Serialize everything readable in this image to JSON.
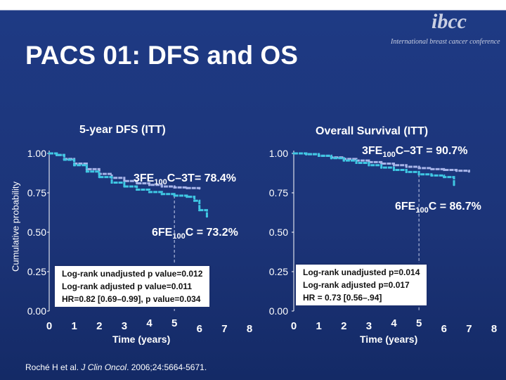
{
  "title": "PACS 01: DFS and OS",
  "logo": {
    "mark": "ibcc",
    "tagline": "International breast cancer conference"
  },
  "ylabel": "Cumulative probability",
  "reference": {
    "prefix": "Roché H et al. ",
    "journal": "J Clin Oncol",
    "suffix": ". 2006;24:5664-5671."
  },
  "colors": {
    "background": "#1c3478",
    "series_fec_t": "#a7b4e8",
    "series_fec": "#3fc7e3",
    "box_bg": "#ffffff"
  },
  "chart_data": [
    {
      "type": "line",
      "title": "5-year DFS (ITT)",
      "xlabel": "Time (years)",
      "xlim": [
        0,
        8
      ],
      "ylim": [
        0,
        1
      ],
      "x_ticks": [
        "0",
        "1",
        "2",
        "3",
        "4",
        "5",
        "6",
        "7",
        "8"
      ],
      "y_ticks": [
        "0.00",
        "0.25",
        "0.50",
        "0.75",
        "1.00"
      ],
      "annotations": {
        "fec_t": {
          "base": "3FE",
          "sub": "100",
          "rest": "C–3T= 78.4%"
        },
        "fec": {
          "base": "6FE",
          "sub": "100",
          "rest": "C = 73.2%"
        }
      },
      "stats_box": [
        "Log-rank unadjusted p value=0.012",
        "Log-rank adjusted p value=0.011",
        "HR=0.82 [0.69–0.99], p value=0.034"
      ],
      "series": [
        {
          "key": "fec_t",
          "x": [
            0,
            0.3,
            0.6,
            1,
            1.5,
            2,
            2.5,
            3,
            3.5,
            4,
            4.5,
            5,
            5.5,
            6
          ],
          "y": [
            1,
            0.99,
            0.965,
            0.935,
            0.9,
            0.87,
            0.845,
            0.825,
            0.81,
            0.8,
            0.79,
            0.784,
            0.78,
            0.778
          ]
        },
        {
          "key": "fec",
          "x": [
            0,
            0.3,
            0.6,
            1,
            1.5,
            2,
            2.5,
            3,
            3.5,
            4,
            4.5,
            5,
            5.5,
            5.8,
            6,
            6.3
          ],
          "y": [
            1,
            0.99,
            0.96,
            0.925,
            0.885,
            0.85,
            0.815,
            0.79,
            0.77,
            0.755,
            0.742,
            0.732,
            0.725,
            0.7,
            0.64,
            0.6
          ]
        }
      ],
      "dashed_marker": {
        "x": 5,
        "y": 0.732
      }
    },
    {
      "type": "line",
      "title": "Overall Survival (ITT)",
      "xlabel": "Time (years)",
      "xlim": [
        0,
        8
      ],
      "ylim": [
        0,
        1
      ],
      "x_ticks": [
        "0",
        "1",
        "2",
        "3",
        "4",
        "5",
        "6",
        "7",
        "8"
      ],
      "y_ticks": [
        "0.00",
        "0.25",
        "0.50",
        "0.75",
        "1.00"
      ],
      "annotations": {
        "fec_t": {
          "base": "3FE",
          "sub": "100",
          "rest": "C–3T  = 90.7%"
        },
        "fec": {
          "base": "6FE",
          "sub": "100",
          "rest": "C = 86.7%"
        }
      },
      "stats_box": [
        "Log-rank unadjusted p=0.014",
        "Log-rank adjusted p=0.017",
        "HR = 0.73 [0.56–.94]"
      ],
      "series": [
        {
          "key": "fec_t",
          "x": [
            0,
            0.5,
            1,
            1.5,
            2,
            2.5,
            3,
            3.5,
            4,
            4.5,
            5,
            5.5,
            6,
            6.5,
            7
          ],
          "y": [
            1,
            0.995,
            0.985,
            0.975,
            0.965,
            0.955,
            0.945,
            0.935,
            0.925,
            0.915,
            0.907,
            0.9,
            0.895,
            0.89,
            0.885
          ]
        },
        {
          "key": "fec",
          "x": [
            0,
            0.5,
            1,
            1.5,
            2,
            2.5,
            3,
            3.5,
            4,
            4.5,
            5,
            5.5,
            6,
            6.4
          ],
          "y": [
            1,
            0.995,
            0.985,
            0.97,
            0.955,
            0.94,
            0.925,
            0.91,
            0.895,
            0.882,
            0.867,
            0.86,
            0.85,
            0.8
          ]
        }
      ],
      "dashed_marker": {
        "x": 5,
        "y": 0.867
      }
    }
  ]
}
